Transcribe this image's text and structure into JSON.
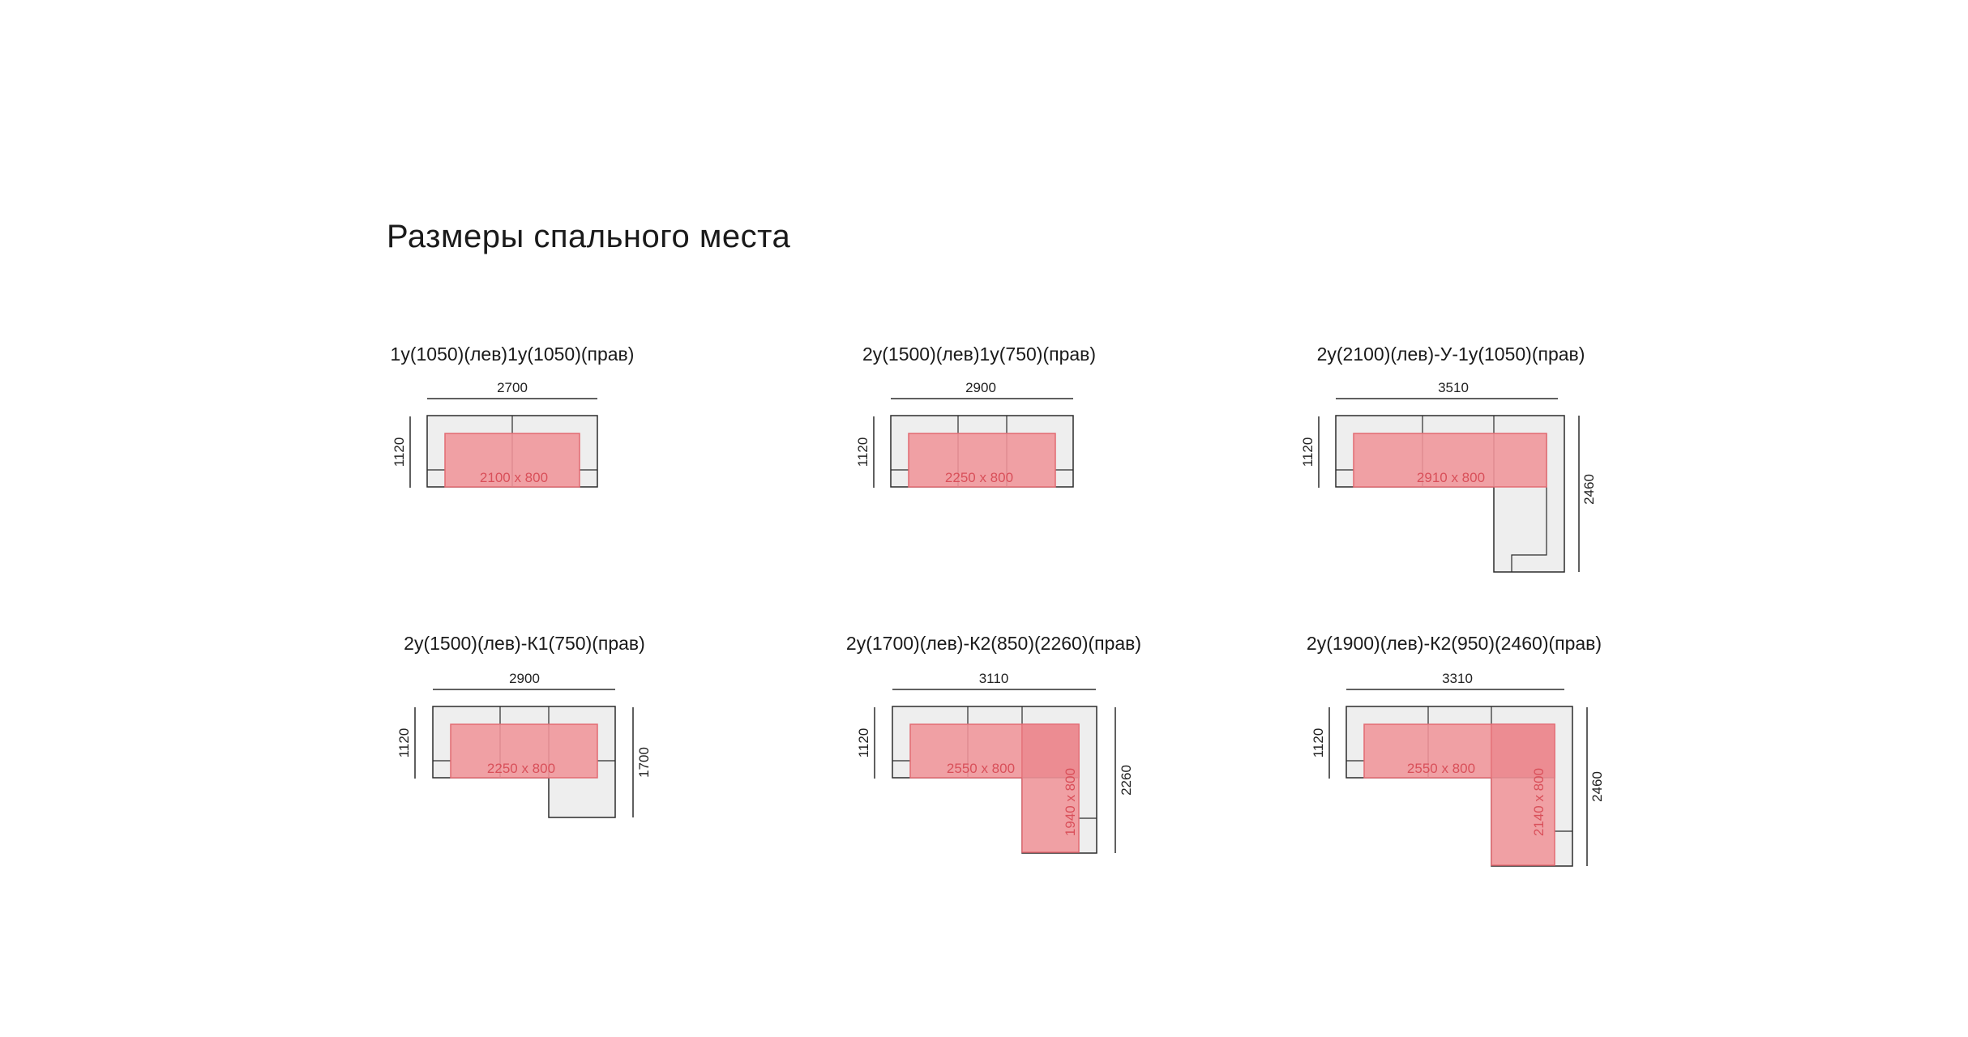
{
  "title": "Размеры спального места",
  "colors": {
    "sofa_fill": "#eeeeee",
    "sofa_stroke": "#2b2b2b",
    "sleep_fill": "#f0a0a4",
    "sleep_fill_overlap": "#ec8c92",
    "sleep_stroke": "#e26a72",
    "sleep_text": "#d9505a"
  },
  "configs": [
    {
      "model": "1у(1050)(лев)1у(1050)(прав)",
      "width": "2700",
      "depth": "1120",
      "sleep": "2100 х 800"
    },
    {
      "model": "2у(1500)(лев)1у(750)(прав)",
      "width": "2900",
      "depth": "1120",
      "sleep": "2250 х 800"
    },
    {
      "model": "2у(2100)(лев)-У-1у(1050)(прав)",
      "width": "3510",
      "depth": "1120",
      "side": "2460",
      "sleep": "2910 х 800"
    },
    {
      "model": "2у(1500)(лев)-К1(750)(прав)",
      "width": "2900",
      "depth": "1120",
      "side": "1700",
      "sleep": "2250 х 800"
    },
    {
      "model": "2у(1700)(лев)-К2(850)(2260)(прав)",
      "width": "3110",
      "depth": "1120",
      "side": "2260",
      "sleep": "2550 х 800",
      "sleep2": "1940 х 800"
    },
    {
      "model": "2у(1900)(лев)-К2(950)(2460)(прав)",
      "width": "3310",
      "depth": "1120",
      "side": "2460",
      "sleep": "2550 х 800",
      "sleep2": "2140 х 800"
    }
  ]
}
